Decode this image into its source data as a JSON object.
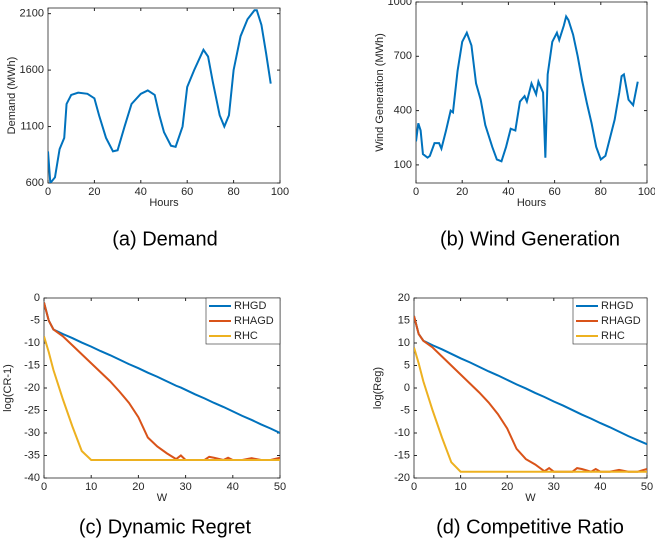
{
  "chart_data": [
    {
      "type": "line",
      "caption": "(a) Demand",
      "x_label": "Hours",
      "y_label": "Demand (MWh)",
      "x": [
        0,
        1,
        3,
        5,
        7,
        8,
        10,
        13,
        17,
        20,
        22,
        25,
        28,
        30,
        33,
        36,
        40,
        43,
        46,
        48,
        50,
        53,
        55,
        58,
        60,
        63,
        67,
        69,
        71,
        74,
        76,
        78,
        80,
        83,
        86,
        89,
        90,
        92,
        94,
        96
      ],
      "values": [
        880,
        600,
        650,
        900,
        1000,
        1300,
        1380,
        1400,
        1390,
        1350,
        1200,
        1000,
        880,
        890,
        1100,
        1300,
        1390,
        1420,
        1380,
        1200,
        1050,
        930,
        920,
        1100,
        1450,
        1600,
        1780,
        1720,
        1500,
        1200,
        1100,
        1200,
        1600,
        1900,
        2050,
        2130,
        2130,
        2000,
        1750,
        1480
      ],
      "color": "#0072bd",
      "xlim": [
        0,
        100
      ],
      "ylim": [
        600,
        2150
      ],
      "xticks": [
        0,
        20,
        40,
        60,
        80,
        100
      ],
      "yticks": [
        600,
        1100,
        1600,
        2100
      ]
    },
    {
      "type": "line",
      "caption": "(b) Wind Generation",
      "x_label": "Hours",
      "y_label": "Wind Generation (MWh)",
      "x": [
        0,
        1,
        2,
        3,
        5,
        6,
        8,
        10,
        11,
        13,
        15,
        16,
        18,
        20,
        22,
        24,
        26,
        28,
        30,
        33,
        35,
        37,
        39,
        41,
        43,
        45,
        47,
        48,
        50,
        52,
        53,
        55,
        56,
        57,
        59,
        61,
        62,
        64,
        65,
        66,
        68,
        70,
        72,
        74,
        76,
        78,
        80,
        82,
        84,
        86,
        88,
        89,
        90,
        92,
        94,
        96
      ],
      "values": [
        230,
        330,
        290,
        160,
        140,
        150,
        220,
        220,
        190,
        290,
        400,
        390,
        620,
        780,
        830,
        760,
        550,
        460,
        320,
        200,
        130,
        120,
        200,
        300,
        290,
        450,
        480,
        450,
        550,
        490,
        560,
        500,
        140,
        600,
        780,
        830,
        790,
        870,
        920,
        900,
        820,
        700,
        560,
        440,
        330,
        200,
        130,
        150,
        250,
        350,
        500,
        590,
        600,
        460,
        430,
        560
      ],
      "color": "#0072bd",
      "xlim": [
        0,
        100
      ],
      "ylim": [
        0,
        1000
      ],
      "xticks": [
        0,
        20,
        40,
        60,
        80,
        100
      ],
      "yticks": [
        100,
        400,
        700,
        1000
      ]
    },
    {
      "type": "line",
      "caption": "(c) Dynamic Regret",
      "x_label": "W",
      "y_label": "log(CR-1)",
      "x": [
        0,
        1,
        2,
        4,
        6,
        8,
        10,
        12,
        14,
        16,
        18,
        20,
        22,
        24,
        26,
        28,
        29,
        30,
        32,
        34,
        35,
        36,
        38,
        39,
        40,
        42,
        44,
        46,
        48,
        50
      ],
      "series": [
        {
          "name": "RHGD",
          "color": "#0072bd",
          "values": [
            -1,
            -5,
            -7,
            -8,
            -8.9,
            -9.9,
            -10.8,
            -11.8,
            -12.7,
            -13.7,
            -14.7,
            -15.6,
            -16.6,
            -17.5,
            -18.5,
            -19.5,
            -19.9,
            -20.4,
            -21.4,
            -22.3,
            -22.8,
            -23.3,
            -24.2,
            -24.7,
            -25.2,
            -26.2,
            -27.1,
            -28.1,
            -29,
            -30
          ]
        },
        {
          "name": "RHAGD",
          "color": "#d95319",
          "values": [
            -1,
            -5,
            -7,
            -8.5,
            -10.5,
            -12.5,
            -14.5,
            -16.5,
            -18.5,
            -20.8,
            -23.3,
            -26.5,
            -31,
            -33,
            -34.5,
            -35.8,
            -35,
            -36,
            -36,
            -36,
            -35.3,
            -35.5,
            -36,
            -35.5,
            -36,
            -36,
            -35.6,
            -36,
            -36,
            -35.5
          ]
        },
        {
          "name": "RHC",
          "color": "#edb120",
          "values": [
            -8.5,
            -12,
            -16,
            -22.5,
            -28.5,
            -34,
            -36,
            -36,
            -36,
            -36,
            -36,
            -36,
            -36,
            -36,
            -36,
            -36,
            -36,
            -36,
            -36,
            -36,
            -36,
            -36,
            -36,
            -36,
            -36,
            -36,
            -36,
            -36,
            -36,
            -36
          ]
        }
      ],
      "legend": "northeast",
      "xlim": [
        0,
        50
      ],
      "ylim": [
        -40,
        0
      ],
      "xticks": [
        0,
        10,
        20,
        30,
        40,
        50
      ],
      "yticks": [
        -40,
        -35,
        -30,
        -25,
        -20,
        -15,
        -10,
        -5,
        0
      ]
    },
    {
      "type": "line",
      "caption": "(d) Competitive Ratio",
      "x_label": "W",
      "y_label": "log(Reg)",
      "x": [
        0,
        1,
        2,
        4,
        6,
        8,
        10,
        12,
        14,
        16,
        18,
        20,
        22,
        24,
        26,
        28,
        29,
        30,
        32,
        34,
        35,
        36,
        38,
        39,
        40,
        42,
        44,
        46,
        48,
        50
      ],
      "series": [
        {
          "name": "RHGD",
          "color": "#0072bd",
          "values": [
            16,
            12,
            10.5,
            9.5,
            8.6,
            7.6,
            6.6,
            5.7,
            4.7,
            3.7,
            2.8,
            1.8,
            0.8,
            -0.1,
            -1.1,
            -2,
            -2.5,
            -3,
            -3.9,
            -4.9,
            -5.4,
            -5.9,
            -6.8,
            -7.3,
            -7.8,
            -8.7,
            -9.7,
            -10.7,
            -11.6,
            -12.5
          ]
        },
        {
          "name": "RHAGD",
          "color": "#d95319",
          "values": [
            16,
            12,
            10.5,
            9,
            7,
            5,
            3,
            1,
            -1,
            -3.2,
            -5.8,
            -9,
            -13.5,
            -15.8,
            -17,
            -18.5,
            -17.8,
            -18.6,
            -18.6,
            -18.6,
            -17.8,
            -18,
            -18.6,
            -18,
            -18.6,
            -18.6,
            -18.2,
            -18.6,
            -18.6,
            -18
          ]
        },
        {
          "name": "RHC",
          "color": "#edb120",
          "values": [
            9,
            5.5,
            1.5,
            -5,
            -11,
            -16.5,
            -18.6,
            -18.6,
            -18.6,
            -18.6,
            -18.6,
            -18.6,
            -18.6,
            -18.6,
            -18.6,
            -18.6,
            -18.6,
            -18.6,
            -18.6,
            -18.6,
            -18.6,
            -18.6,
            -18.6,
            -18.6,
            -18.6,
            -18.6,
            -18.6,
            -18.6,
            -18.6,
            -18.6
          ]
        }
      ],
      "legend": "northeast",
      "xlim": [
        0,
        50
      ],
      "ylim": [
        -20,
        20
      ],
      "xticks": [
        0,
        10,
        20,
        30,
        40,
        50
      ],
      "yticks": [
        -20,
        -15,
        -10,
        -5,
        0,
        5,
        10,
        15,
        20
      ]
    }
  ]
}
